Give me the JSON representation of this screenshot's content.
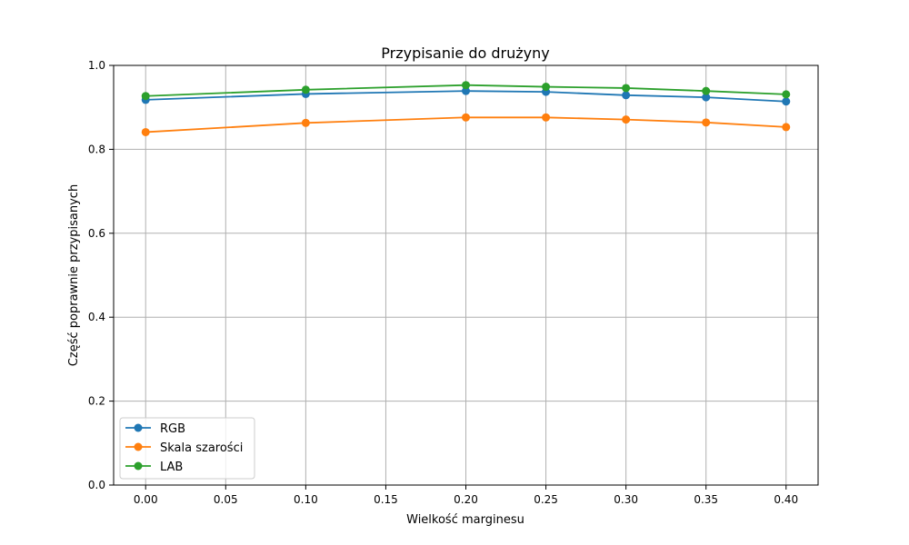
{
  "chart_data": {
    "type": "line",
    "title": "Przypisanie do drużyny",
    "xlabel": "Wielkość marginesu",
    "ylabel": "Część poprawnie przypisanych",
    "xlim": [
      -0.02,
      0.42
    ],
    "ylim": [
      0.0,
      1.0
    ],
    "x_ticks": [
      "0.00",
      "0.05",
      "0.10",
      "0.15",
      "0.20",
      "0.25",
      "0.30",
      "0.35",
      "0.40"
    ],
    "y_ticks": [
      "0.0",
      "0.2",
      "0.4",
      "0.6",
      "0.8",
      "1.0"
    ],
    "grid": true,
    "legend_position": "lower-left",
    "x": [
      0.0,
      0.1,
      0.2,
      0.25,
      0.3,
      0.35,
      0.4
    ],
    "series": [
      {
        "name": "RGB",
        "color": "#1f77b4",
        "values": [
          0.918,
          0.932,
          0.939,
          0.937,
          0.929,
          0.924,
          0.914
        ]
      },
      {
        "name": "Skala szarości",
        "color": "#ff7f0e",
        "values": [
          0.841,
          0.863,
          0.876,
          0.876,
          0.871,
          0.864,
          0.853
        ]
      },
      {
        "name": "LAB",
        "color": "#2ca02c",
        "values": [
          0.927,
          0.942,
          0.953,
          0.949,
          0.946,
          0.939,
          0.931
        ]
      }
    ]
  }
}
